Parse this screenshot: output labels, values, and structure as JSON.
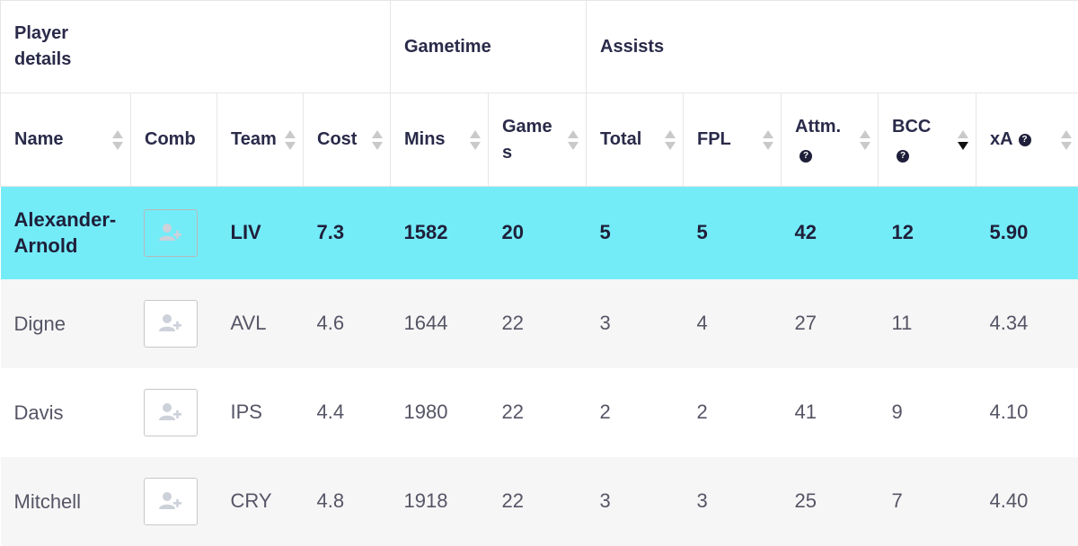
{
  "group_headers": [
    {
      "label": "Player details"
    },
    {
      "label": "Gametime"
    },
    {
      "label": "Assists"
    }
  ],
  "columns": [
    {
      "label": "Name",
      "sortable": true
    },
    {
      "label": "Comb",
      "sortable": false
    },
    {
      "label": "Team",
      "sortable": true
    },
    {
      "label": "Cost",
      "sortable": true
    },
    {
      "label": "Mins",
      "sortable": true
    },
    {
      "label": "Games",
      "sortable": true
    },
    {
      "label": "Total",
      "sortable": true
    },
    {
      "label": "FPL",
      "sortable": true
    },
    {
      "label": "Attm.",
      "sortable": true,
      "help_icon": "question-circle-icon"
    },
    {
      "label": "BCC",
      "sortable": true,
      "help_icon": "question-circle-icon",
      "sort_state": "descending"
    },
    {
      "label": "xA",
      "sortable": true,
      "help_icon": "question-circle-icon"
    }
  ],
  "rows": [
    {
      "name": "Alexander-Arnold",
      "comb_icon": "add-user-icon",
      "team": "LIV",
      "cost": "7.3",
      "mins": "1582",
      "games": "20",
      "total": "5",
      "fpl": "5",
      "attm": "42",
      "bcc": "12",
      "xa": "5.90",
      "selected": true
    },
    {
      "name": "Digne",
      "comb_icon": "add-user-icon",
      "team": "AVL",
      "cost": "4.6",
      "mins": "1644",
      "games": "22",
      "total": "3",
      "fpl": "4",
      "attm": "27",
      "bcc": "11",
      "xa": "4.34",
      "selected": false
    },
    {
      "name": "Davis",
      "comb_icon": "add-user-icon",
      "team": "IPS",
      "cost": "4.4",
      "mins": "1980",
      "games": "22",
      "total": "2",
      "fpl": "2",
      "attm": "41",
      "bcc": "9",
      "xa": "4.10",
      "selected": false
    },
    {
      "name": "Mitchell",
      "comb_icon": "add-user-icon",
      "team": "CRY",
      "cost": "4.8",
      "mins": "1918",
      "games": "22",
      "total": "3",
      "fpl": "3",
      "attm": "25",
      "bcc": "7",
      "xa": "4.40",
      "selected": false
    }
  ],
  "colors": {
    "selected_row": "#74ecf8",
    "alt_row": "#f6f6f6",
    "header_text": "#2a2a4a"
  }
}
